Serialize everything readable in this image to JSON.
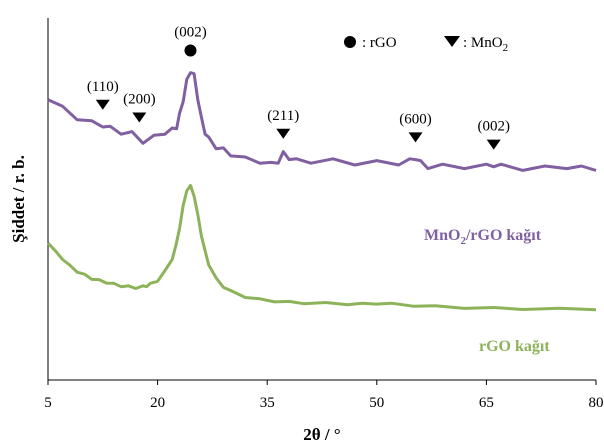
{
  "chart_data": {
    "type": "line",
    "xlabel": "2θ / °",
    "ylabel": "Şiddet / r. b.",
    "xlim": [
      5,
      80
    ],
    "xticks": [
      5,
      20,
      35,
      50,
      65,
      80
    ],
    "xtick_labels": [
      "5",
      "20",
      "35",
      "50",
      "65",
      "80"
    ],
    "grid": false,
    "legend": {
      "placement": "top-right",
      "items": [
        {
          "marker": "circle",
          "text": ": rGO"
        },
        {
          "marker": "triangle-down",
          "text_main": ": MnO",
          "text_sub": "2"
        }
      ]
    },
    "series": [
      {
        "name_main": "MnO",
        "name_sub": "2",
        "name_rest": "/rGO kağıt",
        "color": "#8060a0",
        "x": [
          5,
          7,
          9,
          11,
          12.5,
          13.5,
          15,
          16.5,
          18,
          19.5,
          21,
          22,
          22.6,
          23,
          23.5,
          24,
          24.5,
          25,
          25.5,
          26,
          26.5,
          27,
          28,
          29,
          30,
          32,
          34,
          35.5,
          36.5,
          37.2,
          38,
          39,
          41,
          44,
          47,
          50,
          53,
          54.5,
          55.3,
          56,
          57,
          59,
          62,
          65,
          66,
          67,
          70,
          73,
          76,
          78,
          80
        ],
        "y": [
          0.78,
          0.75,
          0.725,
          0.71,
          0.705,
          0.695,
          0.685,
          0.68,
          0.66,
          0.67,
          0.685,
          0.69,
          0.7,
          0.73,
          0.775,
          0.825,
          0.855,
          0.84,
          0.78,
          0.72,
          0.685,
          0.665,
          0.645,
          0.635,
          0.625,
          0.61,
          0.605,
          0.595,
          0.605,
          0.625,
          0.615,
          0.605,
          0.605,
          0.605,
          0.6,
          0.6,
          0.6,
          0.605,
          0.615,
          0.6,
          0.59,
          0.59,
          0.59,
          0.59,
          0.595,
          0.59,
          0.585,
          0.585,
          0.59,
          0.585,
          0.585
        ]
      },
      {
        "name": "rGO kağıt",
        "color": "#8db35a",
        "x": [
          5,
          6,
          7,
          8,
          9,
          10,
          11,
          12,
          13,
          14,
          15,
          16,
          17,
          18,
          18.5,
          19,
          20,
          21,
          22,
          22.5,
          23,
          23.5,
          24,
          24.5,
          25,
          25.5,
          26,
          26.5,
          27,
          28,
          29,
          30,
          32,
          34,
          36,
          38,
          40,
          43,
          46,
          48,
          50,
          52,
          55,
          58,
          62,
          66,
          70,
          75,
          80
        ],
        "y": [
          0.38,
          0.355,
          0.335,
          0.315,
          0.3,
          0.29,
          0.28,
          0.275,
          0.27,
          0.265,
          0.26,
          0.258,
          0.255,
          0.258,
          0.26,
          0.265,
          0.275,
          0.3,
          0.335,
          0.37,
          0.42,
          0.48,
          0.525,
          0.535,
          0.51,
          0.455,
          0.4,
          0.355,
          0.32,
          0.28,
          0.258,
          0.245,
          0.23,
          0.222,
          0.218,
          0.215,
          0.213,
          0.212,
          0.21,
          0.21,
          0.212,
          0.21,
          0.206,
          0.203,
          0.2,
          0.198,
          0.197,
          0.196,
          0.196
        ]
      }
    ],
    "annotations": [
      {
        "label": "(002)",
        "marker": "circle",
        "phase": "rGO",
        "x": 24.5,
        "y": 0.855
      },
      {
        "label": "(110)",
        "marker": "triangle-down",
        "phase": "MnO2",
        "x": 12.5,
        "y": 0.705
      },
      {
        "label": "(200)",
        "marker": "triangle-down",
        "phase": "MnO2",
        "x": 17.5,
        "y": 0.67
      },
      {
        "label": "(211)",
        "marker": "triangle-down",
        "phase": "MnO2",
        "x": 37.2,
        "y": 0.625
      },
      {
        "label": "(600)",
        "marker": "triangle-down",
        "phase": "MnO2",
        "x": 55.3,
        "y": 0.615
      },
      {
        "label": "(002)",
        "marker": "triangle-down",
        "phase": "MnO2",
        "x": 66,
        "y": 0.595
      }
    ]
  }
}
